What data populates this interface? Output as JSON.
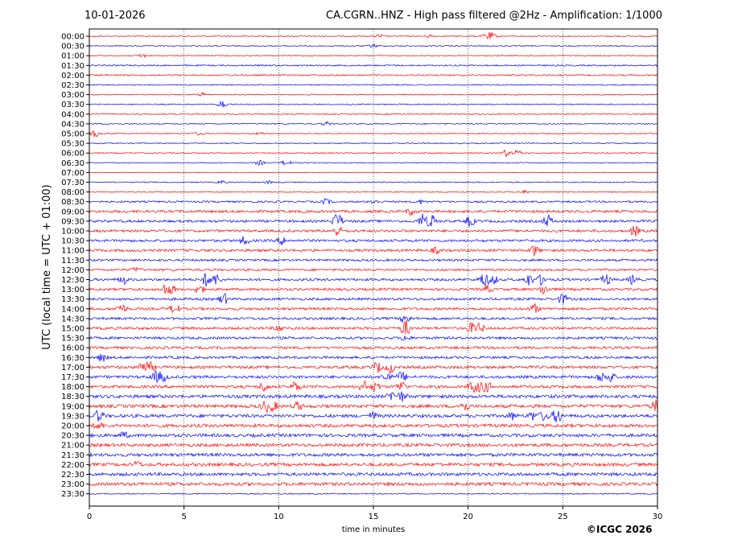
{
  "header": {
    "date": "10-01-2026",
    "title": "CA.CGRN..HNZ - High pass filtered @2Hz - Amplification: 1/1000"
  },
  "footer": {
    "copyright": "©ICGC 2026"
  },
  "colors": {
    "red": "#ff0000",
    "blue": "#0000ff",
    "grid": "#000000"
  },
  "chart_data": {
    "type": "line",
    "title": "CA.CGRN..HNZ - High pass filtered @2Hz - Amplification: 1/1000",
    "xlabel": "time in minutes",
    "ylabel": "UTC (local time = UTC + 01:00)",
    "xlim": [
      0,
      30
    ],
    "x_ticks": [
      0,
      5,
      10,
      15,
      20,
      25,
      30
    ],
    "x_tick_labels": [
      "0",
      "5",
      "10",
      "15",
      "20",
      "25",
      "30"
    ],
    "grid": "vertical dotted lines at 5, 10, 15, 20, 25",
    "series_colors": [
      "#ff0000",
      "#0000ff"
    ],
    "rows": [
      {
        "label": "00:00",
        "noise": 0.3,
        "events": [
          [
            15.3,
            0.6
          ],
          [
            18.0,
            0.5
          ],
          [
            21.0,
            1.0
          ],
          [
            21.3,
            0.7
          ]
        ]
      },
      {
        "label": "00:30",
        "noise": 0.3,
        "events": [
          [
            15.0,
            0.5
          ]
        ]
      },
      {
        "label": "01:00",
        "noise": 0.3,
        "events": [
          [
            2.8,
            0.6
          ]
        ]
      },
      {
        "label": "01:30",
        "noise": 0.4,
        "events": []
      },
      {
        "label": "02:00",
        "noise": 0.4,
        "events": []
      },
      {
        "label": "02:30",
        "noise": 0.3,
        "events": []
      },
      {
        "label": "03:00",
        "noise": 0.3,
        "events": [
          [
            6.0,
            0.5
          ]
        ]
      },
      {
        "label": "03:30",
        "noise": 0.3,
        "events": [
          [
            7.0,
            1.2
          ]
        ]
      },
      {
        "label": "04:00",
        "noise": 0.3,
        "events": []
      },
      {
        "label": "04:30",
        "noise": 0.3,
        "events": [
          [
            12.5,
            0.6
          ]
        ]
      },
      {
        "label": "05:00",
        "noise": 0.3,
        "events": [
          [
            0.3,
            1.0
          ],
          [
            5.8,
            0.5
          ],
          [
            9.0,
            0.4
          ]
        ]
      },
      {
        "label": "05:30",
        "noise": 0.3,
        "events": []
      },
      {
        "label": "06:00",
        "noise": 0.3,
        "events": [
          [
            22.0,
            1.0
          ],
          [
            22.6,
            0.8
          ]
        ]
      },
      {
        "label": "06:30",
        "noise": 0.25,
        "events": [
          [
            9.0,
            0.7
          ],
          [
            10.4,
            0.9
          ]
        ]
      },
      {
        "label": "07:00",
        "noise": 0.15,
        "events": []
      },
      {
        "label": "07:30",
        "noise": 0.3,
        "events": [
          [
            7.0,
            0.5
          ],
          [
            9.5,
            0.4
          ]
        ]
      },
      {
        "label": "08:00",
        "noise": 0.3,
        "events": [
          [
            23.0,
            0.4
          ]
        ]
      },
      {
        "label": "08:30",
        "noise": 0.5,
        "events": [
          [
            12.5,
            0.8
          ],
          [
            15.0,
            0.6
          ],
          [
            17.5,
            0.5
          ]
        ]
      },
      {
        "label": "09:00",
        "noise": 0.7,
        "events": [
          [
            17.0,
            1.0
          ]
        ]
      },
      {
        "label": "09:30",
        "noise": 0.7,
        "events": [
          [
            13.1,
            2.5
          ],
          [
            17.6,
            2.0
          ],
          [
            18.1,
            1.8
          ],
          [
            20.1,
            1.5
          ],
          [
            24.2,
            1.8
          ]
        ]
      },
      {
        "label": "10:00",
        "noise": 0.7,
        "events": [
          [
            13.1,
            1.5
          ],
          [
            28.8,
            1.5
          ]
        ]
      },
      {
        "label": "10:30",
        "noise": 0.7,
        "events": [
          [
            8.2,
            1.2
          ],
          [
            10.2,
            1.2
          ]
        ]
      },
      {
        "label": "11:00",
        "noise": 0.7,
        "events": [
          [
            23.5,
            1.5
          ],
          [
            18.3,
            0.8
          ]
        ]
      },
      {
        "label": "11:30",
        "noise": 0.6,
        "events": []
      },
      {
        "label": "12:00",
        "noise": 0.6,
        "events": [
          [
            2.5,
            0.6
          ]
        ]
      },
      {
        "label": "12:30",
        "noise": 0.7,
        "events": [
          [
            1.8,
            1.2
          ],
          [
            6.2,
            2.0
          ],
          [
            6.7,
            1.5
          ],
          [
            20.8,
            2.0
          ],
          [
            21.3,
            1.5
          ],
          [
            23.2,
            1.8
          ],
          [
            23.9,
            1.5
          ],
          [
            27.3,
            1.5
          ],
          [
            28.7,
            1.3
          ]
        ]
      },
      {
        "label": "13:00",
        "noise": 0.7,
        "events": [
          [
            4.0,
            1.5
          ],
          [
            4.4,
            1.0
          ],
          [
            5.8,
            1.2
          ],
          [
            21.0,
            1.0
          ],
          [
            24.0,
            1.5
          ]
        ]
      },
      {
        "label": "13:30",
        "noise": 0.7,
        "events": [
          [
            7.1,
            1.6
          ],
          [
            25.0,
            1.5
          ]
        ]
      },
      {
        "label": "14:00",
        "noise": 0.7,
        "events": [
          [
            1.7,
            1.5
          ],
          [
            4.5,
            1.5
          ],
          [
            23.5,
            1.3
          ]
        ]
      },
      {
        "label": "14:30",
        "noise": 0.7,
        "events": [
          [
            16.7,
            1.5
          ]
        ]
      },
      {
        "label": "15:00",
        "noise": 0.7,
        "events": [
          [
            16.7,
            2.5
          ],
          [
            20.2,
            1.5
          ],
          [
            20.6,
            1.3
          ],
          [
            10.0,
            1.0
          ]
        ]
      },
      {
        "label": "15:30",
        "noise": 0.7,
        "events": [
          [
            16.7,
            1.0
          ]
        ]
      },
      {
        "label": "16:00",
        "noise": 0.7,
        "events": []
      },
      {
        "label": "16:30",
        "noise": 0.7,
        "events": [
          [
            0.7,
            1.3
          ]
        ]
      },
      {
        "label": "17:00",
        "noise": 0.8,
        "events": [
          [
            2.8,
            1.5
          ],
          [
            3.2,
            1.3
          ],
          [
            15.2,
            1.5
          ],
          [
            15.9,
            1.5
          ]
        ]
      },
      {
        "label": "17:30",
        "noise": 0.8,
        "events": [
          [
            3.5,
            1.5
          ],
          [
            3.9,
            1.3
          ],
          [
            15.7,
            1.5
          ],
          [
            16.5,
            1.5
          ],
          [
            27.0,
            1.3
          ],
          [
            27.5,
            1.5
          ]
        ]
      },
      {
        "label": "18:00",
        "noise": 0.8,
        "events": [
          [
            9.2,
            1.5
          ],
          [
            10.9,
            1.5
          ],
          [
            14.5,
            1.5
          ],
          [
            15.1,
            1.3
          ],
          [
            16.5,
            1.5
          ],
          [
            20.2,
            1.5
          ],
          [
            20.6,
            1.3
          ],
          [
            21.0,
            1.3
          ]
        ]
      },
      {
        "label": "18:30",
        "noise": 0.9,
        "events": [
          [
            16.0,
            1.5
          ],
          [
            16.5,
            1.3
          ]
        ]
      },
      {
        "label": "19:00",
        "noise": 0.9,
        "events": [
          [
            9.3,
            1.5
          ],
          [
            9.7,
            1.3
          ],
          [
            11.0,
            1.2
          ],
          [
            19.8,
            1.5
          ],
          [
            29.9,
            1.6
          ]
        ]
      },
      {
        "label": "19:30",
        "noise": 0.9,
        "events": [
          [
            0.5,
            1.7
          ],
          [
            15.0,
            1.0
          ],
          [
            22.3,
            1.0
          ],
          [
            23.4,
            1.2
          ],
          [
            24.0,
            1.3
          ],
          [
            24.7,
            2.2
          ]
        ]
      },
      {
        "label": "20:00",
        "noise": 0.9,
        "events": [
          [
            0.5,
            1.0
          ]
        ]
      },
      {
        "label": "20:30",
        "noise": 0.9,
        "events": [
          [
            1.8,
            0.9
          ]
        ]
      },
      {
        "label": "21:00",
        "noise": 0.9,
        "events": []
      },
      {
        "label": "21:30",
        "noise": 0.9,
        "events": []
      },
      {
        "label": "22:00",
        "noise": 0.9,
        "events": [
          [
            2.5,
            0.8
          ]
        ]
      },
      {
        "label": "22:30",
        "noise": 0.9,
        "events": []
      },
      {
        "label": "23:00",
        "noise": 0.9,
        "events": []
      },
      {
        "label": "23:30",
        "noise": 0.3,
        "events": []
      }
    ]
  }
}
